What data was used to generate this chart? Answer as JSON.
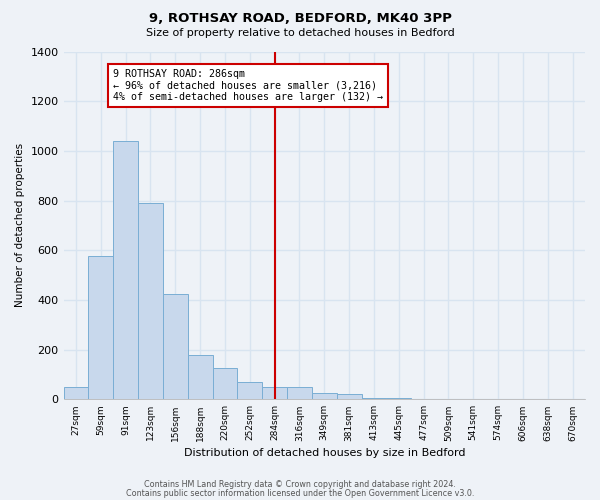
{
  "title": "9, ROTHSAY ROAD, BEDFORD, MK40 3PP",
  "subtitle": "Size of property relative to detached houses in Bedford",
  "xlabel": "Distribution of detached houses by size in Bedford",
  "ylabel": "Number of detached properties",
  "bar_labels": [
    "27sqm",
    "59sqm",
    "91sqm",
    "123sqm",
    "156sqm",
    "188sqm",
    "220sqm",
    "252sqm",
    "284sqm",
    "316sqm",
    "349sqm",
    "381sqm",
    "413sqm",
    "445sqm",
    "477sqm",
    "509sqm",
    "541sqm",
    "574sqm",
    "606sqm",
    "638sqm",
    "670sqm"
  ],
  "bar_heights": [
    50,
    575,
    1040,
    790,
    425,
    180,
    125,
    68,
    50,
    50,
    25,
    20,
    5,
    5,
    2,
    0,
    0,
    0,
    0,
    0,
    0
  ],
  "bar_color": "#c8d8ec",
  "bar_edge_color": "#7aaed4",
  "vline_x_index": 8,
  "vline_label": "9 ROTHSAY ROAD: 286sqm",
  "annotation_smaller": "← 96% of detached houses are smaller (3,216)",
  "annotation_larger": "4% of semi-detached houses are larger (132) →",
  "annotation_box_color": "#ffffff",
  "annotation_box_edge": "#cc0000",
  "vline_color": "#cc0000",
  "ylim": [
    0,
    1400
  ],
  "yticks": [
    0,
    200,
    400,
    600,
    800,
    1000,
    1200,
    1400
  ],
  "footer_line1": "Contains HM Land Registry data © Crown copyright and database right 2024.",
  "footer_line2": "Contains public sector information licensed under the Open Government Licence v3.0.",
  "background_color": "#eef2f7",
  "grid_color": "#d8e4f0"
}
